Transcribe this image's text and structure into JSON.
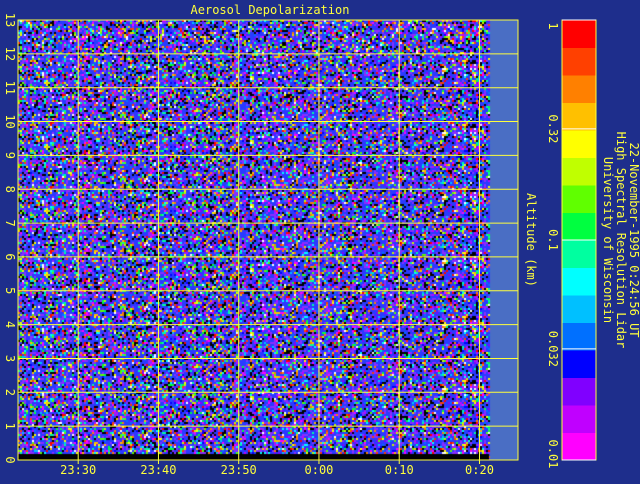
{
  "colors": {
    "background": "#1e2e8c",
    "grid": "#ffff3c",
    "text": "#ffff3c",
    "no_data": "#4a6ec4",
    "colorbar": [
      "#ff00ff",
      "#c000ff",
      "#8000ff",
      "#0000ff",
      "#0070ff",
      "#00c0ff",
      "#00ffff",
      "#00ffa0",
      "#00ff40",
      "#60ff00",
      "#c0ff00",
      "#ffff00",
      "#ffc000",
      "#ff8000",
      "#ff4000",
      "#ff0000"
    ]
  },
  "chart_data": {
    "type": "heatmap",
    "title": "Aerosol Depolarization",
    "ylabel": "Altitude (km)",
    "xlabel": "",
    "x_tick_labels": [
      "23:30",
      "23:40",
      "23:50",
      "0:00",
      "0:10",
      "0:20"
    ],
    "x_ticks_minutes": [
      1410,
      1420,
      1430,
      1440,
      1450,
      1460
    ],
    "x_range_minutes": [
      1402.5,
      1464.8
    ],
    "data_end_minutes": 1461.2,
    "y_ticks": [
      0,
      1,
      2,
      3,
      4,
      5,
      6,
      7,
      8,
      9,
      10,
      11,
      12,
      13
    ],
    "y_tick_labels": [
      "0",
      "1",
      "2",
      "3",
      "4",
      "5",
      "6",
      "7",
      "8",
      "9",
      "10",
      "11",
      "12",
      "13"
    ],
    "ylim": [
      0,
      13
    ],
    "grid": true,
    "colorbar": {
      "scale": "log",
      "range": [
        0.01,
        1
      ],
      "tick_values": [
        0.01,
        0.032,
        0.1,
        0.32,
        1
      ],
      "tick_labels": [
        "0.01",
        "0.032",
        "0.1",
        "0.32",
        "1"
      ]
    },
    "field_description": "noisy depolarization values spread across the full color range at all altitudes and times"
  },
  "annotation": {
    "line1": "University of Wisconsin",
    "line2": "High Spectral Resolution Lidar",
    "line3": "22-November-1995  0:24:56 UT"
  }
}
